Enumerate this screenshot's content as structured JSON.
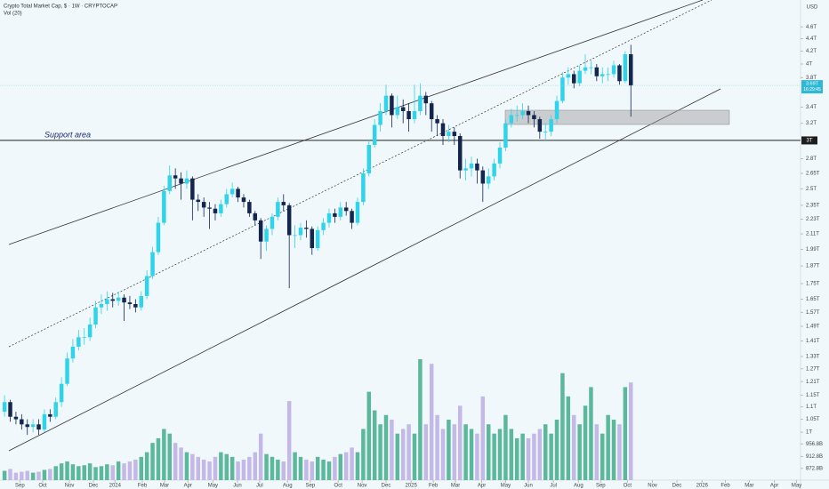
{
  "chart_data": {
    "type": "candlestick",
    "title": "Crypto Total Market Cap, $ · 1W · CRYPTOCAP",
    "volume_title": "Vol (20)",
    "currency": "USD",
    "annotation": "Support area",
    "price_label": "3.69T",
    "countdown": "16:29:45",
    "support_level": {
      "value": 3,
      "label": "3T"
    },
    "log_scale": true,
    "up_color": "#2fd3ea",
    "down_color": "#14264d",
    "volume_up_color": "#5bb89b",
    "volume_down_color": "#c3b8e8",
    "x": [
      0,
      1,
      2,
      3,
      4,
      5,
      6,
      7,
      8,
      9,
      10,
      11,
      12,
      13,
      14,
      15,
      16,
      17,
      18,
      19,
      20,
      21,
      22,
      23,
      24,
      25,
      26,
      27,
      28,
      29,
      30,
      31,
      32,
      33,
      34,
      35,
      36,
      37,
      38,
      39,
      40,
      41,
      42,
      43,
      44,
      45,
      46,
      47,
      48,
      49,
      50,
      51,
      52,
      53,
      54,
      55,
      56,
      57,
      58,
      59,
      60,
      61,
      62,
      63,
      64,
      65,
      66,
      67,
      68,
      69,
      70,
      71,
      72,
      73,
      74,
      75,
      76,
      77,
      78,
      79,
      80,
      81,
      82,
      83,
      84,
      85,
      86,
      87,
      88,
      89,
      90,
      91,
      92,
      93,
      94,
      95,
      96,
      97,
      98,
      99,
      100,
      101,
      102,
      103,
      104,
      105,
      106,
      107,
      108,
      109,
      110
    ],
    "open": [
      1.08,
      1.12,
      1.06,
      1.05,
      1.03,
      1.02,
      1.03,
      1.01,
      1.07,
      1.06,
      1.12,
      1.2,
      1.32,
      1.38,
      1.43,
      1.43,
      1.5,
      1.6,
      1.62,
      1.65,
      1.64,
      1.66,
      1.63,
      1.62,
      1.6,
      1.67,
      1.8,
      1.97,
      2.2,
      2.48,
      2.63,
      2.6,
      2.55,
      2.6,
      2.4,
      2.38,
      2.33,
      2.32,
      2.28,
      2.36,
      2.45,
      2.5,
      2.42,
      2.38,
      2.28,
      2.22,
      2.05,
      2.15,
      2.25,
      2.38,
      2.35,
      2.1,
      2.1,
      2.16,
      2.15,
      2.0,
      2.14,
      2.2,
      2.28,
      2.25,
      2.33,
      2.3,
      2.2,
      2.38,
      2.65,
      2.95,
      3.18,
      3.35,
      3.55,
      3.3,
      3.4,
      3.35,
      3.25,
      3.35,
      3.55,
      3.45,
      3.25,
      3.2,
      3.05,
      3.1,
      3.05,
      2.68,
      2.7,
      2.75,
      2.68,
      2.55,
      2.62,
      2.75,
      2.92,
      3.2,
      3.3,
      3.3,
      3.35,
      3.3,
      3.25,
      3.1,
      3.1,
      3.25,
      3.48,
      3.8,
      3.85,
      3.72,
      3.9,
      3.95,
      3.95,
      3.82,
      3.85,
      3.85,
      3.98,
      3.75,
      4.15
    ],
    "high": [
      1.15,
      1.13,
      1.08,
      1.07,
      1.05,
      1.05,
      1.05,
      1.09,
      1.09,
      1.14,
      1.23,
      1.35,
      1.42,
      1.47,
      1.48,
      1.54,
      1.64,
      1.68,
      1.7,
      1.69,
      1.7,
      1.68,
      1.67,
      1.65,
      1.7,
      1.84,
      2.01,
      2.25,
      2.53,
      2.73,
      2.7,
      2.66,
      2.68,
      2.62,
      2.45,
      2.42,
      2.38,
      2.36,
      2.4,
      2.5,
      2.56,
      2.52,
      2.45,
      2.4,
      2.3,
      2.24,
      2.18,
      2.28,
      2.42,
      2.45,
      2.37,
      2.18,
      2.2,
      2.22,
      2.17,
      2.17,
      2.24,
      2.32,
      2.32,
      2.38,
      2.38,
      2.32,
      2.42,
      2.7,
      3.0,
      3.25,
      3.45,
      3.7,
      3.58,
      3.55,
      3.5,
      3.45,
      3.7,
      3.72,
      3.6,
      3.48,
      3.3,
      3.25,
      3.18,
      3.15,
      3.08,
      2.8,
      2.82,
      2.8,
      2.72,
      2.7,
      2.8,
      2.98,
      3.25,
      3.38,
      3.42,
      3.45,
      3.42,
      3.35,
      3.28,
      3.2,
      3.3,
      3.55,
      3.88,
      3.95,
      3.9,
      3.98,
      4.15,
      4.05,
      4.0,
      3.95,
      3.95,
      4.05,
      4.0,
      4.2,
      4.3
    ],
    "low": [
      1.06,
      1.04,
      1.03,
      1.01,
      0.99,
      1.0,
      0.99,
      1.0,
      1.04,
      1.05,
      1.1,
      1.19,
      1.3,
      1.36,
      1.39,
      1.41,
      1.48,
      1.56,
      1.58,
      1.6,
      1.61,
      1.52,
      1.59,
      1.57,
      1.58,
      1.65,
      1.78,
      1.95,
      2.18,
      2.45,
      2.5,
      2.4,
      2.5,
      2.22,
      2.3,
      2.25,
      2.15,
      2.22,
      2.25,
      2.33,
      2.42,
      2.38,
      2.33,
      2.25,
      2.18,
      1.92,
      1.98,
      2.1,
      2.22,
      2.3,
      1.72,
      2.0,
      2.06,
      2.08,
      1.95,
      1.98,
      2.1,
      2.16,
      2.2,
      2.22,
      2.26,
      2.15,
      2.18,
      2.35,
      2.62,
      2.92,
      3.1,
      3.3,
      3.15,
      3.25,
      3.2,
      3.1,
      3.2,
      3.3,
      3.3,
      3.1,
      3.05,
      2.95,
      2.98,
      2.95,
      2.6,
      2.58,
      2.62,
      2.55,
      2.38,
      2.5,
      2.58,
      2.7,
      2.88,
      3.15,
      3.22,
      3.25,
      3.2,
      3.15,
      3.02,
      3.0,
      3.05,
      3.2,
      3.45,
      3.7,
      3.65,
      3.68,
      3.85,
      3.85,
      3.75,
      3.72,
      3.75,
      3.8,
      3.7,
      3.72,
      3.28
    ],
    "close": [
      1.12,
      1.06,
      1.05,
      1.03,
      1.02,
      1.03,
      1.01,
      1.07,
      1.06,
      1.12,
      1.2,
      1.32,
      1.38,
      1.43,
      1.43,
      1.5,
      1.6,
      1.62,
      1.65,
      1.64,
      1.66,
      1.63,
      1.62,
      1.6,
      1.67,
      1.8,
      1.97,
      2.2,
      2.48,
      2.63,
      2.6,
      2.55,
      2.6,
      2.4,
      2.38,
      2.33,
      2.32,
      2.28,
      2.36,
      2.45,
      2.5,
      2.42,
      2.38,
      2.28,
      2.22,
      2.05,
      2.15,
      2.25,
      2.38,
      2.35,
      2.1,
      2.1,
      2.16,
      2.15,
      2.0,
      2.14,
      2.2,
      2.28,
      2.25,
      2.33,
      2.3,
      2.2,
      2.38,
      2.65,
      2.95,
      3.18,
      3.35,
      3.55,
      3.3,
      3.4,
      3.35,
      3.25,
      3.35,
      3.55,
      3.45,
      3.25,
      3.2,
      3.05,
      3.1,
      3.05,
      2.68,
      2.7,
      2.75,
      2.68,
      2.55,
      2.62,
      2.75,
      2.92,
      3.2,
      3.3,
      3.3,
      3.35,
      3.3,
      3.25,
      3.1,
      3.1,
      3.25,
      3.48,
      3.8,
      3.85,
      3.72,
      3.9,
      3.95,
      3.95,
      3.82,
      3.85,
      3.85,
      3.98,
      3.75,
      4.15,
      3.69
    ],
    "volume": [
      10,
      12,
      8,
      9,
      10,
      8,
      9,
      11,
      12,
      15,
      18,
      20,
      17,
      15,
      16,
      18,
      14,
      15,
      17,
      16,
      20,
      18,
      20,
      22,
      25,
      30,
      40,
      45,
      55,
      50,
      40,
      35,
      30,
      28,
      25,
      22,
      20,
      25,
      30,
      28,
      25,
      20,
      22,
      25,
      30,
      50,
      28,
      25,
      22,
      20,
      85,
      30,
      25,
      22,
      20,
      25,
      22,
      20,
      25,
      28,
      30,
      35,
      30,
      55,
      95,
      75,
      60,
      70,
      65,
      50,
      55,
      60,
      50,
      130,
      60,
      125,
      70,
      55,
      65,
      60,
      80,
      60,
      55,
      50,
      90,
      60,
      50,
      55,
      70,
      55,
      45,
      50,
      45,
      50,
      55,
      60,
      50,
      65,
      115,
      90,
      70,
      60,
      80,
      100,
      60,
      50,
      70,
      65,
      60,
      100,
      105
    ],
    "xlim": [
      -0.8,
      139.8
    ],
    "xticks": [
      {
        "value": 2.7,
        "label": "Sep"
      },
      {
        "value": 6.7,
        "label": "Oct"
      },
      {
        "value": 11.4,
        "label": "Nov"
      },
      {
        "value": 15.6,
        "label": "Dec"
      },
      {
        "value": 19.4,
        "label": "2024"
      },
      {
        "value": 24.2,
        "label": "Feb"
      },
      {
        "value": 28.1,
        "label": "Mar"
      },
      {
        "value": 32.2,
        "label": "Apr"
      },
      {
        "value": 36.6,
        "label": "May"
      },
      {
        "value": 40.9,
        "label": "Jun"
      },
      {
        "value": 44.8,
        "label": "Jul"
      },
      {
        "value": 49.7,
        "label": "Aug"
      },
      {
        "value": 53.7,
        "label": "Sep"
      },
      {
        "value": 58.6,
        "label": "Oct"
      },
      {
        "value": 62.8,
        "label": "Nov"
      },
      {
        "value": 67.0,
        "label": "Dec"
      },
      {
        "value": 71.4,
        "label": "2025"
      },
      {
        "value": 75.3,
        "label": "Feb"
      },
      {
        "value": 79.2,
        "label": "Mar"
      },
      {
        "value": 83.8,
        "label": "Apr"
      },
      {
        "value": 88.0,
        "label": "May"
      },
      {
        "value": 92.0,
        "label": "Jun"
      },
      {
        "value": 96.4,
        "label": "Jul"
      },
      {
        "value": 100.8,
        "label": "Aug"
      },
      {
        "value": 104.7,
        "label": "Sep"
      },
      {
        "value": 109.4,
        "label": "Oct"
      },
      {
        "value": 113.8,
        "label": "Nov"
      },
      {
        "value": 118.1,
        "label": "Dec"
      },
      {
        "value": 122.5,
        "label": "2026"
      },
      {
        "value": 126.6,
        "label": "Feb"
      },
      {
        "value": 130.8,
        "label": "Mar"
      },
      {
        "value": 135.2,
        "label": "Apr"
      },
      {
        "value": 139.1,
        "label": "May"
      }
    ],
    "ylim": [
      0.835,
      5.09
    ],
    "yticks": [
      {
        "value": 4.6,
        "label": "4.6T"
      },
      {
        "value": 4.4,
        "label": "4.4T"
      },
      {
        "value": 4.2,
        "label": "4.2T"
      },
      {
        "value": 4,
        "label": "4T"
      },
      {
        "value": 3.8,
        "label": "3.8T"
      },
      {
        "value": 3.4,
        "label": "3.4T"
      },
      {
        "value": 3.2,
        "label": "3.2T"
      },
      {
        "value": 2.8,
        "label": "2.8T"
      },
      {
        "value": 2.65,
        "label": "2.65T"
      },
      {
        "value": 2.5,
        "label": "2.5T"
      },
      {
        "value": 2.35,
        "label": "2.35T"
      },
      {
        "value": 2.23,
        "label": "2.23T"
      },
      {
        "value": 2.11,
        "label": "2.11T"
      },
      {
        "value": 1.99,
        "label": "1.99T"
      },
      {
        "value": 1.87,
        "label": "1.87T"
      },
      {
        "value": 1.75,
        "label": "1.75T"
      },
      {
        "value": 1.65,
        "label": "1.65T"
      },
      {
        "value": 1.57,
        "label": "1.57T"
      },
      {
        "value": 1.49,
        "label": "1.49T"
      },
      {
        "value": 1.41,
        "label": "1.41T"
      },
      {
        "value": 1.33,
        "label": "1.33T"
      },
      {
        "value": 1.27,
        "label": "1.27T"
      },
      {
        "value": 1.21,
        "label": "1.21T"
      },
      {
        "value": 1.15,
        "label": "1.15T"
      },
      {
        "value": 1.1,
        "label": "1.1T"
      },
      {
        "value": 1.05,
        "label": "1.05T"
      },
      {
        "value": 1,
        "label": "1T"
      },
      {
        "value": 0.9568,
        "label": "956.8B"
      },
      {
        "value": 0.9128,
        "label": "912.8B"
      },
      {
        "value": 0.8728,
        "label": "872.8B"
      }
    ]
  }
}
